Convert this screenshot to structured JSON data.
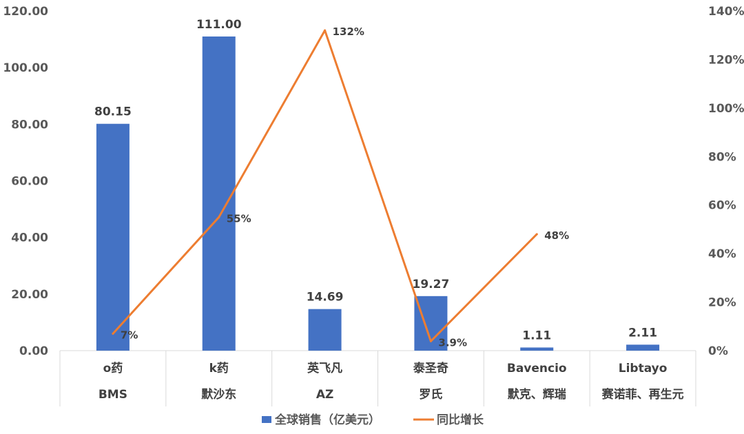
{
  "chart_data": {
    "type": "bar",
    "categories": [
      [
        "o药",
        "BMS"
      ],
      [
        "k药",
        "默沙东"
      ],
      [
        "英飞凡",
        "AZ"
      ],
      [
        "泰圣奇",
        "罗氏"
      ],
      [
        "Bavencio",
        "默克、辉瑞"
      ],
      [
        "Libtayo",
        "赛诺菲、再生元"
      ]
    ],
    "y_left": {
      "min": 0,
      "max": 120,
      "step": 20,
      "tick_labels": [
        "0.00",
        "20.00",
        "40.00",
        "60.00",
        "80.00",
        "100.00",
        "120.00"
      ]
    },
    "y_right": {
      "min": 0,
      "max": 140,
      "step": 20,
      "tick_labels": [
        "0%",
        "20%",
        "40%",
        "60%",
        "80%",
        "100%",
        "120%",
        "140%"
      ]
    },
    "series": [
      {
        "name": "全球销售（亿美元）",
        "kind": "bar",
        "axis": "left",
        "color": "#4472C4",
        "values": [
          80.15,
          111.0,
          14.69,
          19.27,
          1.11,
          2.11
        ],
        "labels": [
          "80.15",
          "111.00",
          "14.69",
          "19.27",
          "1.11",
          "2.11"
        ]
      },
      {
        "name": "同比增长",
        "kind": "line",
        "axis": "right",
        "color": "#ED7D31",
        "values": [
          7,
          55,
          132,
          3.9,
          48,
          null
        ],
        "labels": [
          "7%",
          "55%",
          "132%",
          "3.9%",
          "48%",
          null
        ]
      }
    ],
    "legend_position": "bottom",
    "grid": false
  }
}
